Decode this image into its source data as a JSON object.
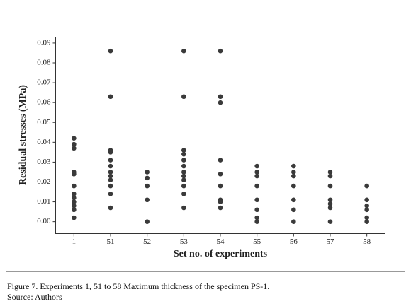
{
  "chart_data": {
    "type": "scatter",
    "x_label": "Set no. of experiments",
    "y_label": "Residual stresses (MPa)",
    "categories": [
      "1",
      "51",
      "52",
      "53",
      "54",
      "55",
      "56",
      "57",
      "58"
    ],
    "values": [
      [
        0.042,
        0.039,
        0.037,
        0.025,
        0.024,
        0.018,
        0.014,
        0.012,
        0.01,
        0.008,
        0.006,
        0.002
      ],
      [
        0.086,
        0.063,
        0.036,
        0.035,
        0.031,
        0.028,
        0.025,
        0.023,
        0.021,
        0.018,
        0.014,
        0.007
      ],
      [
        0.025,
        0.022,
        0.018,
        0.011,
        0.0
      ],
      [
        0.086,
        0.063,
        0.036,
        0.034,
        0.031,
        0.028,
        0.025,
        0.023,
        0.021,
        0.018,
        0.014,
        0.007
      ],
      [
        0.086,
        0.063,
        0.06,
        0.031,
        0.024,
        0.018,
        0.011,
        0.01,
        0.007
      ],
      [
        0.028,
        0.025,
        0.023,
        0.018,
        0.011,
        0.006,
        0.002,
        0.0
      ],
      [
        0.028,
        0.025,
        0.023,
        0.018,
        0.011,
        0.006,
        0.0
      ],
      [
        0.025,
        0.023,
        0.018,
        0.011,
        0.009,
        0.007,
        0.0
      ],
      [
        0.018,
        0.011,
        0.008,
        0.006,
        0.002,
        0.0
      ]
    ],
    "color": "#3a3a3a",
    "ylim": [
      -0.006,
      0.093
    ],
    "yticks": [
      {
        "value": 0,
        "label": "0.00"
      },
      0.01,
      0.02,
      0.03,
      0.04,
      0.05,
      0.06,
      0.07,
      0.08,
      0.09
    ]
  },
  "caption": "Figure 7. Experiments 1, 51 to 58 Maximum thickness of the specimen PS-1.",
  "source": "Source: Authors"
}
